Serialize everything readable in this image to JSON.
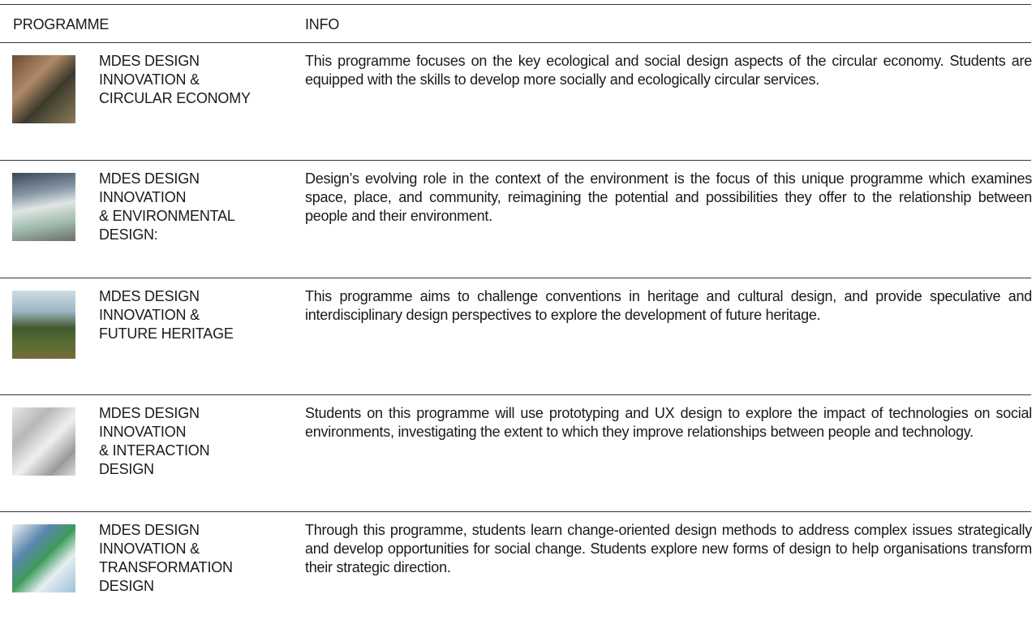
{
  "table": {
    "headers": [
      "PROGRAMME",
      "INFO"
    ],
    "rows": [
      {
        "name": [
          "MDES DESIGN",
          "INNOVATION &",
          "CIRCULAR ECONOMY"
        ],
        "info": "This programme focuses on the key ecological and social design aspects of the circular economy. Students are equipped with the skills to develop more socially and ecologically circular services."
      },
      {
        "name": [
          "MDES DESIGN",
          "INNOVATION",
          "& ENVIRONMENTAL",
          "DESIGN:"
        ],
        "info": "Design’s evolving role in the context of the environment is the focus of this unique programme which examines space, place, and community, reimagining the potential and possibilities they offer to the relationship between people and their environment."
      },
      {
        "name": [
          "MDES DESIGN",
          "INNOVATION &",
          "FUTURE HERITAGE"
        ],
        "info": "This programme aims to challenge conventions in heritage and cultural design, and provide speculative and interdisciplinary design perspectives to explore the development of future heritage."
      },
      {
        "name": [
          "MDES DESIGN",
          "INNOVATION",
          "& INTERACTION",
          "DESIGN"
        ],
        "info": "Students on this programme will use prototyping and UX design to explore the impact of technologies on social environments, investigating the extent to which they improve relationships between people and technology."
      },
      {
        "name": [
          "MDES DESIGN",
          "INNOVATION &",
          "TRANSFORMATION",
          "DESIGN"
        ],
        "info": "Through this programme, students learn change-oriented design methods to address complex issues strategically and develop opportunities for social change. Students explore new forms of design to help organisations transform their strategic direction."
      }
    ]
  }
}
